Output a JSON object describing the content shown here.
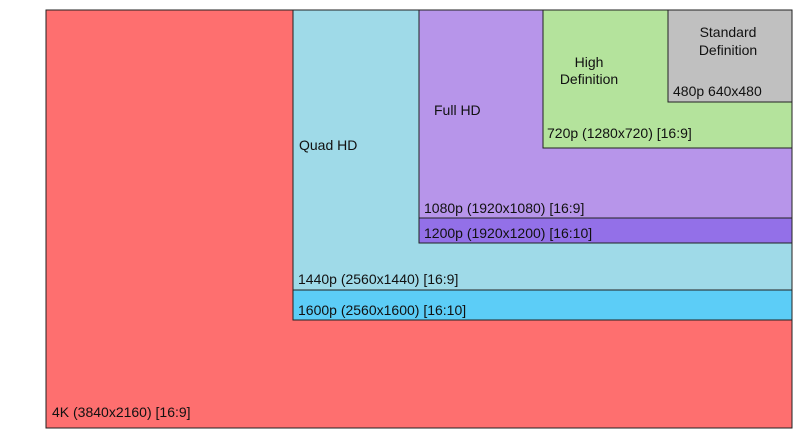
{
  "regions": [
    {
      "resolution": "4K (3840x2160) [16:9]"
    },
    {
      "name": "Quad HD",
      "resolution": "1440p (2560x1440) [16:9]",
      "wide": "1600p (2560x1600) [16:10]"
    },
    {
      "name": "Full HD",
      "resolution": "1080p (1920x1080) [16:9]",
      "wide": "1200p (1920x1200) [16:10]"
    },
    {
      "name": [
        "High",
        "Definition"
      ],
      "resolution": "720p (1280x720) [16:9]"
    },
    {
      "name": [
        "Standard",
        "Definition"
      ],
      "resolution": "480p 640x480"
    }
  ]
}
